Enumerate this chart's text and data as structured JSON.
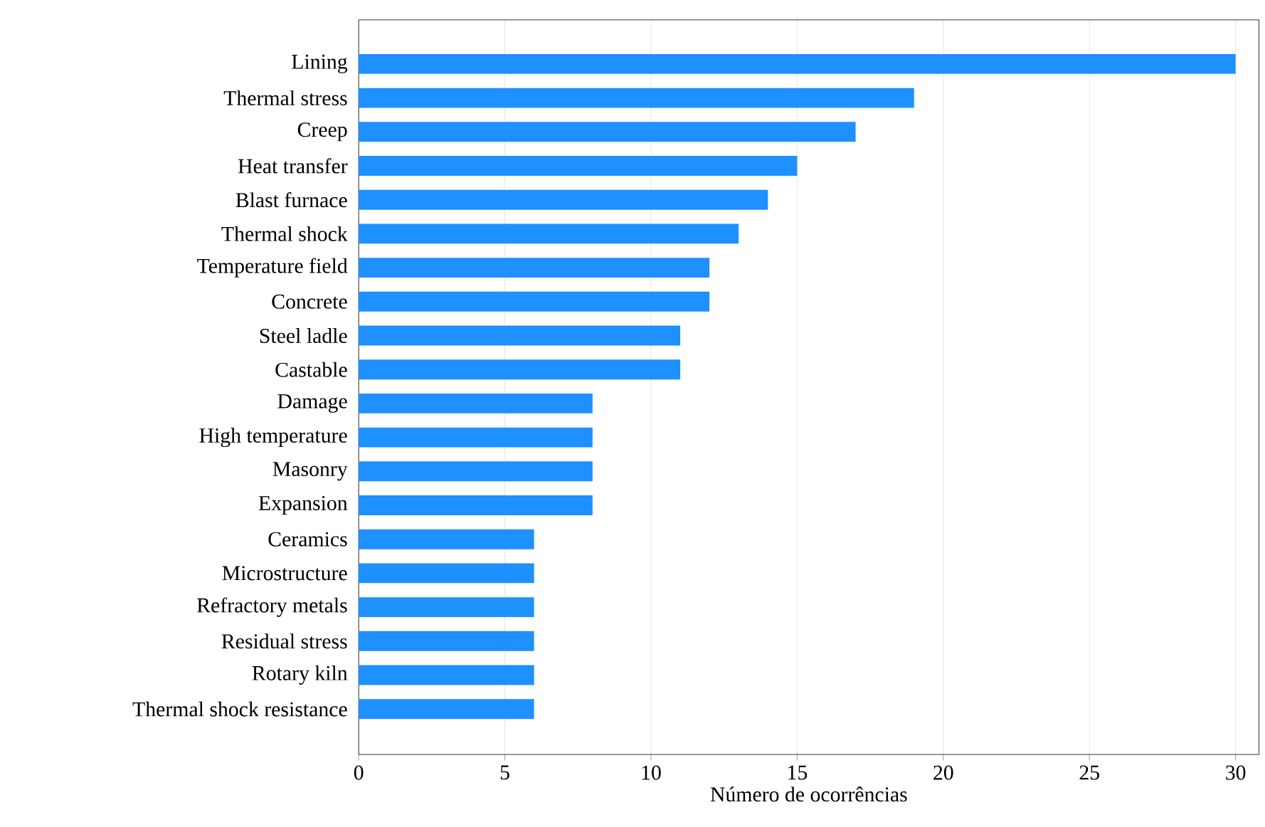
{
  "chart_data": {
    "type": "bar",
    "orientation": "horizontal",
    "xlabel": "Número de ocorrências",
    "categories": [
      "Lining",
      "Thermal stress",
      "Creep",
      "Heat transfer",
      "Blast furnace",
      "Thermal shock",
      "Temperature field",
      "Concrete",
      "Steel ladle",
      "Castable",
      "Damage",
      "High temperature",
      "Masonry",
      "Expansion",
      "Ceramics",
      "Microstructure",
      "Refractory metals",
      "Residual stress",
      "Rotary kiln",
      "Thermal shock resistance"
    ],
    "values": [
      30,
      19,
      17,
      15,
      14,
      13,
      12,
      12,
      11,
      11,
      8,
      8,
      8,
      8,
      6,
      6,
      6,
      6,
      6,
      6
    ],
    "color": "#1e90ff",
    "xlim": [
      0,
      30.8
    ],
    "xticks": [
      0,
      5,
      10,
      15,
      20,
      25,
      30
    ],
    "grid": "x"
  }
}
